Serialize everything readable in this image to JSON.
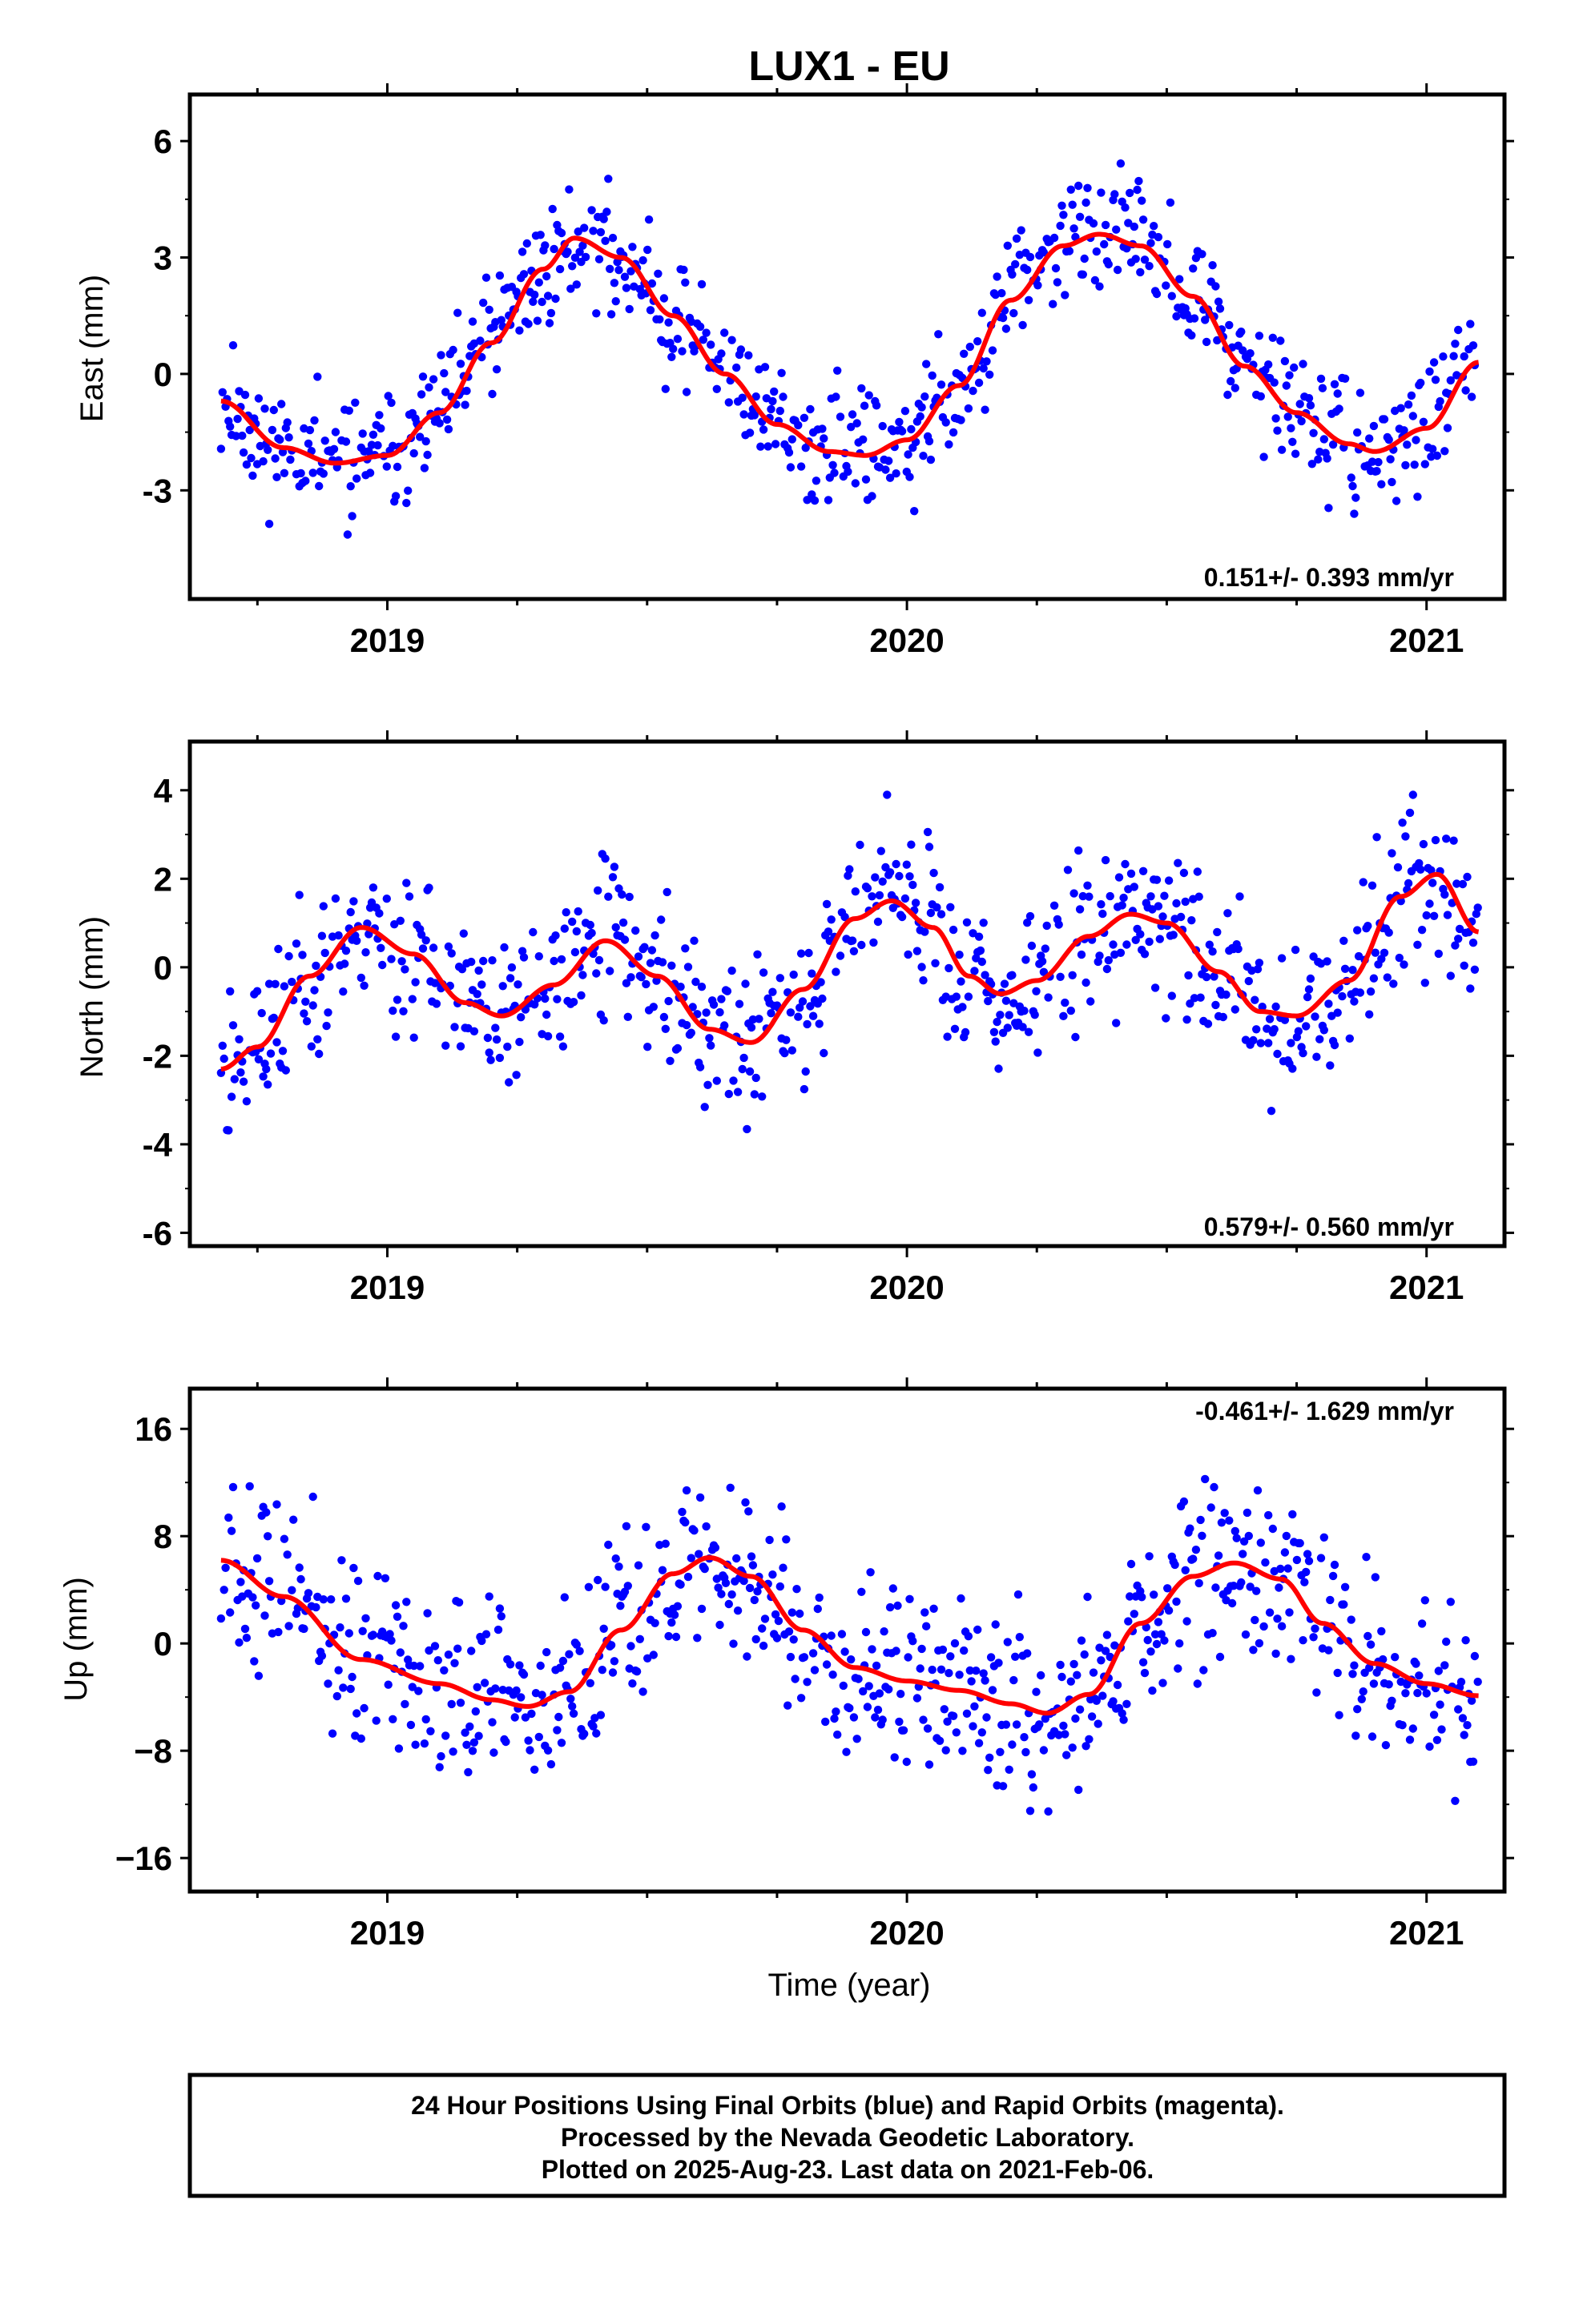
{
  "title": "LUX1 - EU",
  "xlabel": "Time (year)",
  "colors": {
    "points": "#0000ff",
    "fit": "#ff0000",
    "frame": "#000000"
  },
  "footer": {
    "line1": "24 Hour Positions Using Final Orbits (blue) and Rapid Orbits (magenta).",
    "line2": "Processed by the Nevada Geodetic Laboratory.",
    "line3": "Plotted on 2025-Aug-23. Last data on 2021-Feb-06."
  },
  "chart_data": [
    {
      "type": "scatter",
      "ylabel": "East (mm)",
      "rate": "0.151+/- 0.393 mm/yr",
      "xlim": [
        2018.62,
        2021.15
      ],
      "ylim": [
        -5.8,
        7.2
      ],
      "xticks": [
        {
          "v": 2019,
          "label": "2019"
        },
        {
          "v": 2020,
          "label": "2020"
        },
        {
          "v": 2021,
          "label": "2021"
        }
      ],
      "yticks": [
        {
          "v": -3,
          "label": "-3"
        },
        {
          "v": 0,
          "label": "0"
        },
        {
          "v": 3,
          "label": "3"
        },
        {
          "v": 6,
          "label": "6"
        }
      ],
      "fit": {
        "x": [
          2018.68,
          2018.8,
          2018.9,
          2019.0,
          2019.1,
          2019.2,
          2019.3,
          2019.36,
          2019.45,
          2019.55,
          2019.65,
          2019.75,
          2019.85,
          2019.92,
          2020.0,
          2020.1,
          2020.2,
          2020.3,
          2020.37,
          2020.45,
          2020.55,
          2020.65,
          2020.75,
          2020.85,
          2020.9,
          2021.0,
          2021.1
        ],
        "y": [
          -0.7,
          -1.9,
          -2.3,
          -2.1,
          -1.0,
          0.8,
          2.7,
          3.5,
          3.0,
          1.5,
          0.0,
          -1.3,
          -2.0,
          -2.1,
          -1.7,
          -0.3,
          1.9,
          3.3,
          3.6,
          3.3,
          2.0,
          0.2,
          -1.0,
          -1.8,
          -2.0,
          -1.4,
          0.3
        ]
      },
      "points": [],
      "seed": 11,
      "noise": 1.1
    },
    {
      "type": "scatter",
      "ylabel": "North (mm)",
      "rate": "0.579+/- 0.560 mm/yr",
      "xlim": [
        2018.62,
        2021.15
      ],
      "ylim": [
        -6.3,
        5.1
      ],
      "xticks": [
        {
          "v": 2019,
          "label": "2019"
        },
        {
          "v": 2020,
          "label": "2020"
        },
        {
          "v": 2021,
          "label": "2021"
        }
      ],
      "yticks": [
        {
          "v": -6,
          "label": "-6"
        },
        {
          "v": -4,
          "label": "-4"
        },
        {
          "v": -2,
          "label": "-2"
        },
        {
          "v": 0,
          "label": "0"
        },
        {
          "v": 2,
          "label": "2"
        },
        {
          "v": 4,
          "label": "4"
        }
      ],
      "fit": {
        "x": [
          2018.68,
          2018.75,
          2018.85,
          2018.95,
          2019.05,
          2019.15,
          2019.22,
          2019.32,
          2019.42,
          2019.52,
          2019.62,
          2019.7,
          2019.8,
          2019.9,
          2019.97,
          2020.05,
          2020.12,
          2020.18,
          2020.25,
          2020.35,
          2020.43,
          2020.5,
          2020.6,
          2020.68,
          2020.75,
          2020.85,
          2020.95,
          2021.02,
          2021.1
        ],
        "y": [
          -2.3,
          -1.8,
          -0.2,
          0.9,
          0.3,
          -0.8,
          -1.1,
          -0.4,
          0.6,
          -0.2,
          -1.4,
          -1.7,
          -0.5,
          1.1,
          1.5,
          0.9,
          -0.2,
          -0.6,
          -0.3,
          0.7,
          1.2,
          1.0,
          -0.1,
          -1.0,
          -1.1,
          -0.3,
          1.6,
          2.1,
          0.8
        ]
      },
      "points": [],
      "seed": 23,
      "noise": 1.3
    },
    {
      "type": "scatter",
      "ylabel": "Up (mm)",
      "rate": "-0.461+/- 1.629 mm/yr",
      "xlim": [
        2018.62,
        2021.15
      ],
      "ylim": [
        -18.5,
        19.0
      ],
      "xticks": [
        {
          "v": 2019,
          "label": "2019"
        },
        {
          "v": 2020,
          "label": "2020"
        },
        {
          "v": 2021,
          "label": "2021"
        }
      ],
      "yticks": [
        {
          "v": -16,
          "label": "−16"
        },
        {
          "v": -8,
          "label": "−8"
        },
        {
          "v": 0,
          "label": "0"
        },
        {
          "v": 8,
          "label": "8"
        },
        {
          "v": 16,
          "label": "16"
        }
      ],
      "fit": {
        "x": [
          2018.68,
          2018.8,
          2018.95,
          2019.1,
          2019.2,
          2019.27,
          2019.35,
          2019.45,
          2019.55,
          2019.62,
          2019.7,
          2019.8,
          2019.9,
          2020.0,
          2020.1,
          2020.2,
          2020.27,
          2020.35,
          2020.45,
          2020.55,
          2020.63,
          2020.72,
          2020.8,
          2020.9,
          2021.0,
          2021.1
        ],
        "y": [
          6.2,
          3.5,
          -1.2,
          -3.0,
          -4.2,
          -4.7,
          -3.6,
          1.0,
          5.2,
          6.4,
          5.0,
          1.0,
          -1.8,
          -2.8,
          -3.5,
          -4.5,
          -5.2,
          -3.8,
          1.5,
          5.0,
          6.0,
          4.8,
          1.5,
          -1.5,
          -3.0,
          -3.9
        ]
      },
      "points": [],
      "seed": 37,
      "noise": 4.6
    }
  ]
}
